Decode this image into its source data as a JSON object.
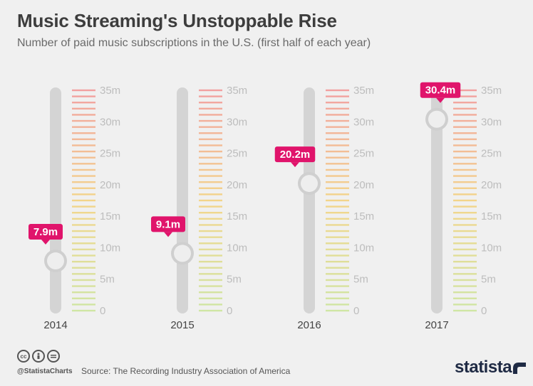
{
  "header": {
    "title": "Music Streaming's Unstoppable Rise",
    "subtitle": "Number of paid music subscriptions in the U.S. (first half of each year)"
  },
  "footer": {
    "source": "Source: The Recording Industry Association of America",
    "handle": "@StatistaCharts",
    "brand": "statista",
    "license_icons": [
      "cc-icon",
      "by-person-icon",
      "nd-equals-icon"
    ]
  },
  "colors": {
    "accent": "#e0146b",
    "track": "#d4d4d4",
    "tick_text": "#bdbdbd",
    "scale_top": "#f2a0a0",
    "scale_mid": "#f3d58a",
    "scale_bottom": "#cfe6a4"
  },
  "chart_data": {
    "type": "slider",
    "title": "Music Streaming's Unstoppable Rise",
    "subtitle": "Number of paid music subscriptions in the U.S. (first half of each year)",
    "categories": [
      "2014",
      "2015",
      "2016",
      "2017"
    ],
    "values": [
      7.9,
      9.1,
      20.2,
      30.4
    ],
    "value_labels": [
      "7.9m",
      "9.1m",
      "20.2m",
      "30.4m"
    ],
    "tick_labels": [
      "0",
      "5m",
      "10m",
      "15m",
      "20m",
      "25m",
      "30m",
      "35m"
    ],
    "tick_values": [
      0,
      5,
      10,
      15,
      20,
      25,
      30,
      35
    ],
    "ylim": [
      0,
      35
    ],
    "unit": "m"
  }
}
